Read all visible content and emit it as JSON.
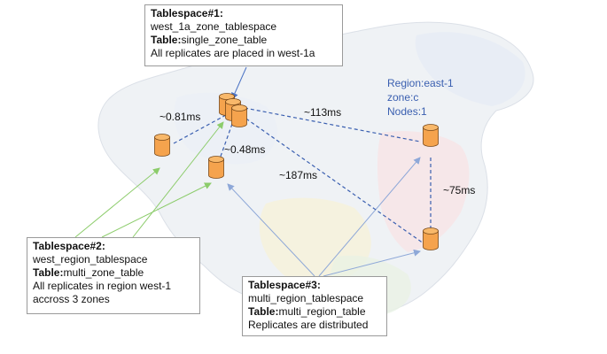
{
  "tablespace1": {
    "heading": "Tablespace#1:",
    "name": "west_1a_zone_tablespace",
    "table_key": "Table:",
    "table_val": "single_zone_table",
    "note": "All replicates are placed in west-1a"
  },
  "tablespace2": {
    "heading": "Tablespace#2:",
    "name": "west_region_tablespace",
    "table_key": "Table:",
    "table_val": "multi_zone_table",
    "note1": "All replicates in region west-1",
    "note2": "accross 3 zones"
  },
  "tablespace3": {
    "heading": "Tablespace#3:",
    "name": "multi_region_tablespace",
    "table_key": "Table:",
    "table_val": "multi_region_table",
    "note": "Replicates are distributed"
  },
  "region_info": {
    "region": "Region:east-1",
    "zone": "zone:c",
    "nodes": "Nodes:1"
  },
  "latencies": {
    "west_zone": "~0.81ms",
    "west_near": "~0.48ms",
    "to_east_c": "~113ms",
    "to_east_far": "~187ms",
    "east_link": "~75ms"
  },
  "colors": {
    "cylinder_fill": "#f5a34d",
    "cylinder_stroke": "#7a4a1a",
    "dashed_link": "#3a5fb0",
    "green_arrow": "#8ccc6b",
    "blue_arrow": "#8ea8d8",
    "map_base": "#e9edf2"
  }
}
